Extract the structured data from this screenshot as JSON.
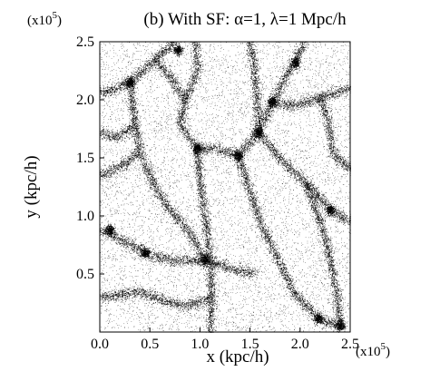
{
  "chart_data": {
    "type": "scatter",
    "title": "(b) With SF: α=1, λ=1 Mpc/h",
    "xlabel": "x (kpc/h)",
    "ylabel": "y (kpc/h)",
    "x_multiplier": "(x10",
    "y_multiplier": "(x10",
    "multiplier_exponent": "5",
    "xlim": [
      0.0,
      2.5
    ],
    "ylim": [
      0.0,
      2.5
    ],
    "x_ticks": [
      "0.0",
      "0.5",
      "1.0",
      "1.5",
      "2.0",
      "2.5"
    ],
    "y_ticks": [
      "0.5",
      "1.0",
      "1.5",
      "2.0",
      "2.5"
    ],
    "grid": false,
    "legend": "none",
    "marker_color": "#000000",
    "filaments": [
      [
        [
          0.0,
          2.05
        ],
        [
          0.3,
          2.15
        ],
        [
          0.55,
          2.35
        ],
        [
          0.75,
          2.5
        ]
      ],
      [
        [
          0.3,
          2.15
        ],
        [
          0.35,
          1.8
        ],
        [
          0.4,
          1.55
        ],
        [
          0.55,
          1.25
        ],
        [
          0.7,
          1.05
        ],
        [
          0.9,
          0.85
        ],
        [
          1.05,
          0.62
        ]
      ],
      [
        [
          0.95,
          2.5
        ],
        [
          0.98,
          2.25
        ],
        [
          0.85,
          2.0
        ],
        [
          0.8,
          1.8
        ],
        [
          0.97,
          1.58
        ]
      ],
      [
        [
          0.97,
          1.58
        ],
        [
          1.15,
          1.58
        ],
        [
          1.38,
          1.52
        ],
        [
          1.58,
          1.72
        ],
        [
          1.72,
          1.98
        ],
        [
          1.92,
          2.3
        ],
        [
          2.05,
          2.5
        ]
      ],
      [
        [
          0.97,
          1.58
        ],
        [
          1.0,
          1.3
        ],
        [
          1.05,
          0.98
        ],
        [
          1.1,
          0.62
        ],
        [
          1.12,
          0.3
        ],
        [
          1.1,
          0.0
        ]
      ],
      [
        [
          1.38,
          1.52
        ],
        [
          1.5,
          1.2
        ],
        [
          1.62,
          0.9
        ],
        [
          1.78,
          0.62
        ],
        [
          1.95,
          0.32
        ],
        [
          2.18,
          0.12
        ],
        [
          2.4,
          0.05
        ]
      ],
      [
        [
          0.0,
          0.88
        ],
        [
          0.25,
          0.78
        ],
        [
          0.48,
          0.68
        ],
        [
          0.7,
          0.62
        ],
        [
          1.05,
          0.62
        ],
        [
          1.3,
          0.55
        ],
        [
          1.55,
          0.5
        ]
      ],
      [
        [
          1.72,
          1.98
        ],
        [
          1.95,
          1.95
        ],
        [
          2.2,
          2.02
        ],
        [
          2.5,
          2.1
        ]
      ],
      [
        [
          1.58,
          1.72
        ],
        [
          1.85,
          1.45
        ],
        [
          2.1,
          1.25
        ],
        [
          2.3,
          1.05
        ],
        [
          2.5,
          0.95
        ]
      ],
      [
        [
          0.0,
          1.35
        ],
        [
          0.2,
          1.42
        ],
        [
          0.4,
          1.55
        ]
      ],
      [
        [
          0.0,
          0.3
        ],
        [
          0.2,
          0.32
        ],
        [
          0.4,
          0.35
        ],
        [
          0.6,
          0.28
        ],
        [
          0.85,
          0.22
        ],
        [
          1.12,
          0.3
        ]
      ],
      [
        [
          2.05,
          1.3
        ],
        [
          2.18,
          1.0
        ],
        [
          2.28,
          0.7
        ],
        [
          2.35,
          0.4
        ],
        [
          2.4,
          0.05
        ]
      ],
      [
        [
          1.5,
          2.5
        ],
        [
          1.55,
          2.2
        ],
        [
          1.58,
          1.9
        ],
        [
          1.58,
          1.72
        ]
      ],
      [
        [
          0.0,
          1.72
        ],
        [
          0.18,
          1.68
        ],
        [
          0.35,
          1.8
        ]
      ],
      [
        [
          2.2,
          2.02
        ],
        [
          2.28,
          1.8
        ],
        [
          2.32,
          1.55
        ],
        [
          2.5,
          1.4
        ]
      ],
      [
        [
          0.55,
          2.35
        ],
        [
          0.7,
          2.2
        ],
        [
          0.85,
          2.0
        ]
      ]
    ],
    "halos": [
      [
        0.97,
        1.58
      ],
      [
        1.38,
        1.52
      ],
      [
        1.05,
        0.62
      ],
      [
        2.4,
        0.06
      ],
      [
        0.45,
        0.68
      ],
      [
        1.72,
        1.98
      ],
      [
        2.18,
        0.12
      ],
      [
        0.3,
        2.15
      ],
      [
        1.58,
        1.72
      ],
      [
        2.3,
        1.05
      ],
      [
        0.1,
        0.88
      ],
      [
        1.95,
        2.32
      ],
      [
        0.78,
        2.43
      ]
    ]
  }
}
